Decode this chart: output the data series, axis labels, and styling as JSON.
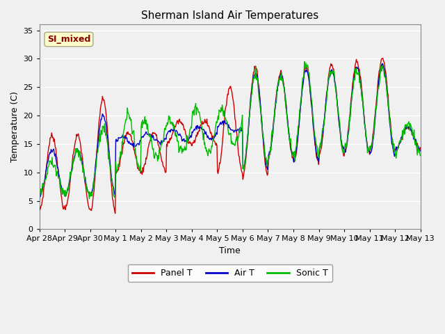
{
  "title": "Sherman Island Air Temperatures",
  "xlabel": "Time",
  "ylabel": "Temperature (C)",
  "ylim": [
    0,
    36
  ],
  "yticks": [
    0,
    5,
    10,
    15,
    20,
    25,
    30,
    35
  ],
  "annotation_text": "SI_mixed",
  "annotation_color": "#8B0000",
  "annotation_bg": "#FFFFCC",
  "fig_bg": "#F0F0F0",
  "plot_bg": "#F0F0F0",
  "line_colors": {
    "panel": "#CC0000",
    "air": "#0000CC",
    "sonic": "#00BB00"
  },
  "legend_labels": [
    "Panel T",
    "Air T",
    "Sonic T"
  ],
  "x_tick_labels": [
    "Apr 28",
    "Apr 29",
    "Apr 30",
    "May 1",
    "May 2",
    "May 3",
    "May 4",
    "May 5",
    "May 6",
    "May 7",
    "May 8",
    "May 9",
    "May 10",
    "May 11",
    "May 12",
    "May 13"
  ],
  "figsize": [
    6.4,
    4.8
  ],
  "dpi": 100
}
